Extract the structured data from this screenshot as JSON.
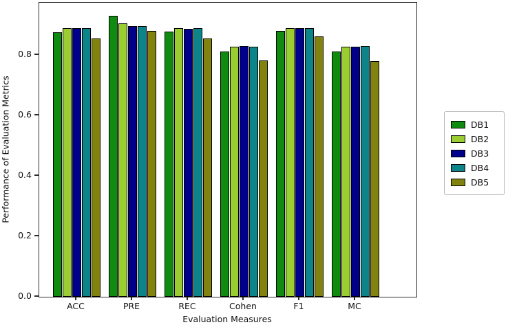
{
  "chart_data": {
    "type": "bar",
    "title": "",
    "xlabel": "Evaluation Measures",
    "ylabel": "Performance of Evaluation Metrics",
    "categories": [
      "ACC",
      "PRE",
      "REC",
      "Cohen",
      "F1",
      "MC"
    ],
    "series": [
      {
        "name": "DB1",
        "color": "#0f8b0f",
        "values": [
          0.876,
          0.929,
          0.877,
          0.811,
          0.879,
          0.811
        ]
      },
      {
        "name": "DB2",
        "color": "#9acd32",
        "values": [
          0.89,
          0.904,
          0.889,
          0.827,
          0.89,
          0.828
        ]
      },
      {
        "name": "DB3",
        "color": "#00008b",
        "values": [
          0.889,
          0.895,
          0.886,
          0.83,
          0.89,
          0.827
        ]
      },
      {
        "name": "DB4",
        "color": "#0c8489",
        "values": [
          0.888,
          0.896,
          0.889,
          0.828,
          0.889,
          0.83
        ]
      },
      {
        "name": "DB5",
        "color": "#82820e",
        "values": [
          0.855,
          0.879,
          0.855,
          0.781,
          0.862,
          0.78
        ]
      }
    ],
    "y_tick_labels": [
      "0.0",
      "0.2",
      "0.4",
      "0.6",
      "0.8"
    ],
    "y_tick_values": [
      0.0,
      0.2,
      0.4,
      0.6,
      0.8
    ],
    "ylim": [
      0,
      0.973
    ],
    "grid": false,
    "legend_position": "right-outside",
    "bar_edge_color": "#000000",
    "background_color": "#ffffff"
  }
}
